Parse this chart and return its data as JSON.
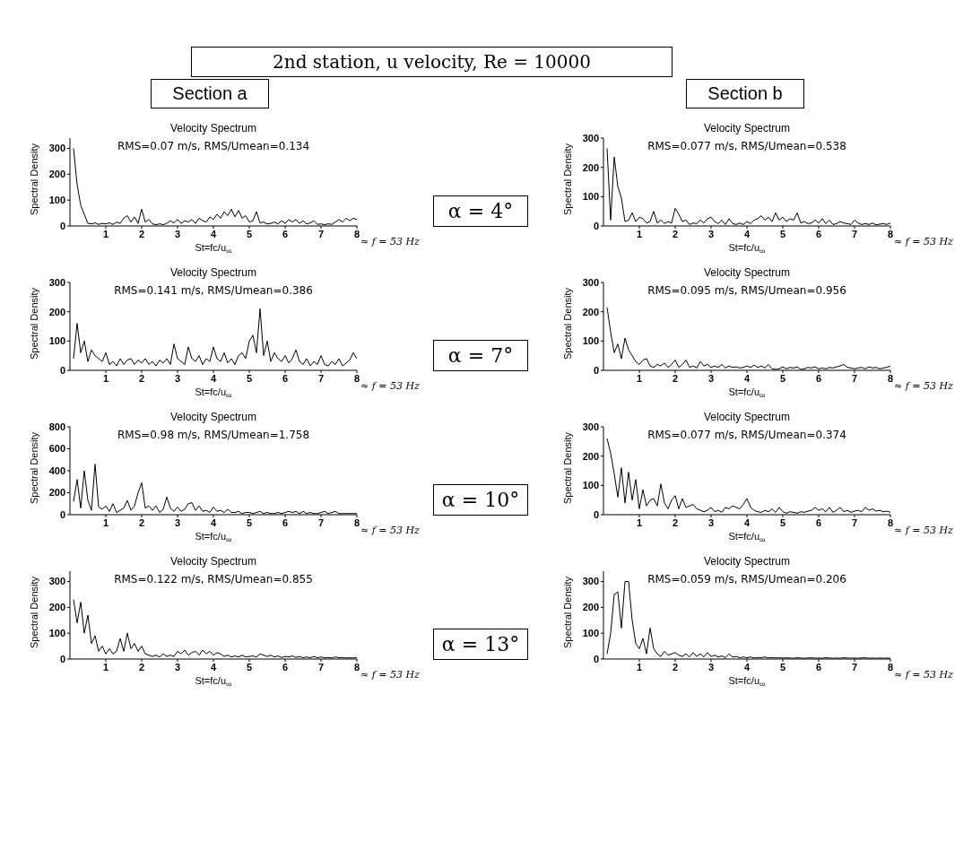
{
  "chart_data": [
    {
      "type": "other",
      "title": "2nd station, u velocity, Re = 10000",
      "annotations": [
        "Section a",
        "Section b"
      ]
    },
    {
      "type": "line",
      "title": "Velocity Spectrum",
      "xlabel": "St=fc/u$_{∞}$",
      "ylabel": "Spectral Density",
      "annotations": [
        "RMS=0.07 m/s, RMS/Umean=0.134",
        "≈ f = 53 Hz"
      ],
      "xlim": [
        0,
        8
      ],
      "xticks": [
        1,
        2,
        3,
        4,
        5,
        6,
        7,
        8
      ],
      "ylim": [
        0,
        340
      ],
      "yticks": [
        0,
        100,
        200,
        300
      ],
      "color": "#000000",
      "x": [
        0.1,
        0.2,
        0.3,
        0.4,
        0.5,
        0.6,
        0.7,
        0.8,
        0.9,
        1.0,
        1.1,
        1.2,
        1.3,
        1.4,
        1.5,
        1.6,
        1.7,
        1.8,
        1.9,
        2.0,
        2.1,
        2.2,
        2.3,
        2.4,
        2.5,
        2.6,
        2.7,
        2.8,
        2.9,
        3.0,
        3.1,
        3.2,
        3.3,
        3.4,
        3.5,
        3.6,
        3.7,
        3.8,
        3.9,
        4.0,
        4.1,
        4.2,
        4.3,
        4.4,
        4.5,
        4.6,
        4.7,
        4.8,
        4.9,
        5.0,
        5.1,
        5.2,
        5.3,
        5.4,
        5.5,
        5.6,
        5.7,
        5.8,
        5.9,
        6.0,
        6.1,
        6.2,
        6.3,
        6.4,
        6.5,
        6.6,
        6.7,
        6.8,
        6.9,
        7.0,
        7.1,
        7.2,
        7.3,
        7.4,
        7.5,
        7.6,
        7.7,
        7.8,
        7.9,
        8.0
      ],
      "values": [
        300,
        160,
        80,
        45,
        10,
        8,
        12,
        6,
        10,
        8,
        12,
        6,
        15,
        10,
        30,
        40,
        15,
        35,
        10,
        65,
        15,
        25,
        8,
        5,
        8,
        5,
        10,
        20,
        12,
        25,
        10,
        20,
        15,
        25,
        10,
        30,
        20,
        15,
        35,
        25,
        45,
        30,
        55,
        40,
        65,
        35,
        60,
        30,
        40,
        15,
        20,
        55,
        12,
        15,
        8,
        10,
        15,
        8,
        20,
        10,
        25,
        15,
        25,
        10,
        20,
        8,
        12,
        20,
        6,
        8,
        5,
        8,
        6,
        15,
        25,
        15,
        30,
        20,
        30,
        25
      ]
    },
    {
      "type": "line",
      "title": "Velocity Spectrum",
      "xlabel": "St=fc/u$_{∞}$",
      "ylabel": "Spectral Density",
      "annotations": [
        "RMS=0.077 m/s, RMS/Umean=0.538",
        "≈ f = 53 Hz",
        "α = 4°"
      ],
      "xlim": [
        0,
        8
      ],
      "xticks": [
        1,
        2,
        3,
        4,
        5,
        6,
        7,
        8
      ],
      "ylim": [
        0,
        300
      ],
      "yticks": [
        0,
        100,
        200,
        300
      ],
      "color": "#000000",
      "x": [
        0.1,
        0.2,
        0.3,
        0.4,
        0.5,
        0.6,
        0.7,
        0.8,
        0.9,
        1.0,
        1.1,
        1.2,
        1.3,
        1.4,
        1.5,
        1.6,
        1.7,
        1.8,
        1.9,
        2.0,
        2.1,
        2.2,
        2.3,
        2.4,
        2.5,
        2.6,
        2.7,
        2.8,
        2.9,
        3.0,
        3.1,
        3.2,
        3.3,
        3.4,
        3.5,
        3.6,
        3.7,
        3.8,
        3.9,
        4.0,
        4.1,
        4.2,
        4.3,
        4.4,
        4.5,
        4.6,
        4.7,
        4.8,
        4.9,
        5.0,
        5.1,
        5.2,
        5.3,
        5.4,
        5.5,
        5.6,
        5.7,
        5.8,
        5.9,
        6.0,
        6.1,
        6.2,
        6.3,
        6.4,
        6.5,
        6.6,
        6.7,
        6.8,
        6.9,
        7.0,
        7.1,
        7.2,
        7.3,
        7.4,
        7.5,
        7.6,
        7.7,
        7.8,
        7.9,
        8.0
      ],
      "values": [
        265,
        20,
        235,
        135,
        95,
        15,
        20,
        45,
        15,
        30,
        25,
        10,
        15,
        50,
        10,
        20,
        8,
        15,
        10,
        60,
        40,
        15,
        20,
        5,
        10,
        8,
        20,
        10,
        25,
        30,
        15,
        8,
        20,
        5,
        25,
        8,
        5,
        10,
        5,
        15,
        8,
        20,
        25,
        35,
        20,
        30,
        15,
        45,
        20,
        30,
        15,
        25,
        20,
        45,
        10,
        15,
        8,
        10,
        20,
        10,
        25,
        8,
        20,
        5,
        8,
        15,
        10,
        8,
        5,
        20,
        10,
        5,
        8,
        5,
        10,
        4,
        6,
        8,
        5,
        10
      ]
    },
    {
      "type": "line",
      "title": "Velocity Spectrum",
      "xlabel": "St=fc/u$_{∞}$",
      "ylabel": "Spectral Density",
      "annotations": [
        "RMS=0.141 m/s, RMS/Umean=0.386",
        "≈ f = 53 Hz"
      ],
      "xlim": [
        0,
        8
      ],
      "xticks": [
        1,
        2,
        3,
        4,
        5,
        6,
        7,
        8
      ],
      "ylim": [
        0,
        300
      ],
      "yticks": [
        0,
        100,
        200,
        300
      ],
      "color": "#000000",
      "x": [
        0.1,
        0.2,
        0.3,
        0.4,
        0.5,
        0.6,
        0.7,
        0.8,
        0.9,
        1.0,
        1.1,
        1.2,
        1.3,
        1.4,
        1.5,
        1.6,
        1.7,
        1.8,
        1.9,
        2.0,
        2.1,
        2.2,
        2.3,
        2.4,
        2.5,
        2.6,
        2.7,
        2.8,
        2.9,
        3.0,
        3.1,
        3.2,
        3.3,
        3.4,
        3.5,
        3.6,
        3.7,
        3.8,
        3.9,
        4.0,
        4.1,
        4.2,
        4.3,
        4.4,
        4.5,
        4.6,
        4.7,
        4.8,
        4.9,
        5.0,
        5.1,
        5.2,
        5.3,
        5.4,
        5.5,
        5.6,
        5.7,
        5.8,
        5.9,
        6.0,
        6.1,
        6.2,
        6.3,
        6.4,
        6.5,
        6.6,
        6.7,
        6.8,
        6.9,
        7.0,
        7.1,
        7.2,
        7.3,
        7.4,
        7.5,
        7.6,
        7.7,
        7.8,
        7.9,
        8.0
      ],
      "values": [
        40,
        160,
        60,
        100,
        30,
        70,
        50,
        40,
        30,
        60,
        20,
        30,
        15,
        40,
        20,
        35,
        40,
        20,
        35,
        25,
        40,
        20,
        30,
        15,
        35,
        25,
        40,
        20,
        90,
        40,
        30,
        20,
        80,
        40,
        30,
        50,
        20,
        40,
        30,
        80,
        40,
        30,
        60,
        25,
        40,
        20,
        50,
        60,
        40,
        100,
        120,
        60,
        210,
        50,
        100,
        30,
        60,
        40,
        30,
        50,
        25,
        40,
        70,
        30,
        20,
        40,
        15,
        30,
        20,
        50,
        20,
        15,
        30,
        20,
        40,
        15,
        25,
        35,
        60,
        40
      ]
    },
    {
      "type": "line",
      "title": "Velocity Spectrum",
      "xlabel": "St=fc/u$_{∞}$",
      "ylabel": "Spectral Density",
      "annotations": [
        "RMS=0.095 m/s, RMS/Umean=0.956",
        "≈ f = 53 Hz",
        "α = 7°"
      ],
      "xlim": [
        0,
        8
      ],
      "xticks": [
        1,
        2,
        3,
        4,
        5,
        6,
        7,
        8
      ],
      "ylim": [
        0,
        300
      ],
      "yticks": [
        0,
        100,
        200,
        300
      ],
      "color": "#000000",
      "x": [
        0.1,
        0.2,
        0.3,
        0.4,
        0.5,
        0.6,
        0.7,
        0.8,
        0.9,
        1.0,
        1.1,
        1.2,
        1.3,
        1.4,
        1.5,
        1.6,
        1.7,
        1.8,
        1.9,
        2.0,
        2.1,
        2.2,
        2.3,
        2.4,
        2.5,
        2.6,
        2.7,
        2.8,
        2.9,
        3.0,
        3.1,
        3.2,
        3.3,
        3.4,
        3.5,
        3.6,
        3.7,
        3.8,
        3.9,
        4.0,
        4.1,
        4.2,
        4.3,
        4.4,
        4.5,
        4.6,
        4.7,
        4.8,
        4.9,
        5.0,
        5.1,
        5.2,
        5.3,
        5.4,
        5.5,
        5.6,
        5.7,
        5.8,
        5.9,
        6.0,
        6.1,
        6.2,
        6.3,
        6.4,
        6.5,
        6.6,
        6.7,
        6.8,
        6.9,
        7.0,
        7.1,
        7.2,
        7.3,
        7.4,
        7.5,
        7.6,
        7.7,
        7.8,
        7.9,
        8.0
      ],
      "values": [
        215,
        130,
        60,
        90,
        40,
        110,
        70,
        50,
        30,
        20,
        35,
        40,
        15,
        10,
        20,
        15,
        25,
        10,
        20,
        35,
        10,
        20,
        35,
        10,
        15,
        8,
        30,
        15,
        20,
        10,
        15,
        10,
        20,
        8,
        15,
        10,
        12,
        8,
        10,
        15,
        10,
        18,
        10,
        15,
        8,
        20,
        5,
        3,
        5,
        12,
        5,
        10,
        8,
        12,
        3,
        5,
        10,
        8,
        12,
        5,
        8,
        5,
        10,
        8,
        12,
        15,
        20,
        10,
        8,
        5,
        8,
        10,
        5,
        12,
        8,
        10,
        5,
        8,
        10,
        15
      ]
    },
    {
      "type": "line",
      "title": "Velocity Spectrum",
      "xlabel": "St=fc/u$_{∞}$",
      "ylabel": "Spectral Density",
      "annotations": [
        "RMS=0.98 m/s, RMS/Umean=1.758",
        "≈ f = 53 Hz"
      ],
      "xlim": [
        0,
        8
      ],
      "xticks": [
        1,
        2,
        3,
        4,
        5,
        6,
        7,
        8
      ],
      "ylim": [
        0,
        800
      ],
      "yticks": [
        0,
        200,
        400,
        600,
        800
      ],
      "color": "#000000",
      "x": [
        0.1,
        0.2,
        0.3,
        0.4,
        0.5,
        0.6,
        0.7,
        0.8,
        0.9,
        1.0,
        1.1,
        1.2,
        1.3,
        1.4,
        1.5,
        1.6,
        1.7,
        1.8,
        1.9,
        2.0,
        2.1,
        2.2,
        2.3,
        2.4,
        2.5,
        2.6,
        2.7,
        2.8,
        2.9,
        3.0,
        3.1,
        3.2,
        3.3,
        3.4,
        3.5,
        3.6,
        3.7,
        3.8,
        3.9,
        4.0,
        4.1,
        4.2,
        4.3,
        4.4,
        4.5,
        4.6,
        4.7,
        4.8,
        4.9,
        5.0,
        5.1,
        5.2,
        5.3,
        5.4,
        5.5,
        5.6,
        5.7,
        5.8,
        5.9,
        6.0,
        6.1,
        6.2,
        6.3,
        6.4,
        6.5,
        6.6,
        6.7,
        6.8,
        6.9,
        7.0,
        7.1,
        7.2,
        7.3,
        7.4,
        7.5,
        7.6,
        7.7,
        7.8,
        7.9,
        8.0
      ],
      "values": [
        120,
        320,
        60,
        400,
        130,
        40,
        460,
        70,
        50,
        80,
        30,
        100,
        20,
        40,
        60,
        130,
        40,
        80,
        200,
        290,
        60,
        80,
        40,
        80,
        20,
        50,
        160,
        60,
        30,
        70,
        30,
        50,
        100,
        110,
        40,
        80,
        30,
        40,
        20,
        70,
        30,
        40,
        20,
        50,
        20,
        20,
        30,
        10,
        20,
        20,
        10,
        20,
        30,
        10,
        20,
        10,
        10,
        20,
        10,
        20,
        30,
        20,
        30,
        10,
        30,
        10,
        20,
        10,
        10,
        20,
        30,
        10,
        20,
        30,
        10,
        10,
        10,
        10,
        10,
        10
      ]
    },
    {
      "type": "line",
      "title": "Velocity Spectrum",
      "xlabel": "St=fc/u$_{∞}$",
      "ylabel": "Spectral Density",
      "annotations": [
        "RMS=0.077 m/s, RMS/Umean=0.374",
        "≈ f = 53 Hz",
        "α = 10°"
      ],
      "xlim": [
        0,
        8
      ],
      "xticks": [
        1,
        2,
        3,
        4,
        5,
        6,
        7,
        8
      ],
      "ylim": [
        0,
        300
      ],
      "yticks": [
        0,
        100,
        200,
        300
      ],
      "color": "#000000",
      "x": [
        0.1,
        0.2,
        0.3,
        0.4,
        0.5,
        0.6,
        0.7,
        0.8,
        0.9,
        1.0,
        1.1,
        1.2,
        1.3,
        1.4,
        1.5,
        1.6,
        1.7,
        1.8,
        1.9,
        2.0,
        2.1,
        2.2,
        2.3,
        2.4,
        2.5,
        2.6,
        2.7,
        2.8,
        2.9,
        3.0,
        3.1,
        3.2,
        3.3,
        3.4,
        3.5,
        3.6,
        3.7,
        3.8,
        3.9,
        4.0,
        4.1,
        4.2,
        4.3,
        4.4,
        4.5,
        4.6,
        4.7,
        4.8,
        4.9,
        5.0,
        5.1,
        5.2,
        5.3,
        5.4,
        5.5,
        5.6,
        5.7,
        5.8,
        5.9,
        6.0,
        6.1,
        6.2,
        6.3,
        6.4,
        6.5,
        6.6,
        6.7,
        6.8,
        6.9,
        7.0,
        7.1,
        7.2,
        7.3,
        7.4,
        7.5,
        7.6,
        7.7,
        7.8,
        7.9,
        8.0
      ],
      "values": [
        260,
        210,
        140,
        60,
        160,
        40,
        145,
        50,
        120,
        20,
        85,
        30,
        50,
        55,
        30,
        105,
        40,
        20,
        50,
        65,
        20,
        55,
        25,
        30,
        35,
        20,
        15,
        10,
        15,
        25,
        10,
        15,
        8,
        25,
        20,
        30,
        25,
        20,
        35,
        55,
        25,
        15,
        10,
        8,
        15,
        10,
        20,
        8,
        25,
        10,
        5,
        10,
        8,
        5,
        10,
        8,
        12,
        15,
        25,
        15,
        20,
        10,
        25,
        8,
        15,
        25,
        10,
        15,
        8,
        12,
        15,
        10,
        25,
        15,
        20,
        12,
        15,
        10,
        12,
        8
      ]
    },
    {
      "type": "line",
      "title": "Velocity Spectrum",
      "xlabel": "St=fc/u$_{∞}$",
      "ylabel": "Spectral Density",
      "annotations": [
        "RMS=0.122 m/s, RMS/Umean=0.855",
        "≈ f = 53 Hz"
      ],
      "xlim": [
        0,
        8
      ],
      "xticks": [
        1,
        2,
        3,
        4,
        5,
        6,
        7,
        8
      ],
      "ylim": [
        0,
        340
      ],
      "yticks": [
        0,
        100,
        200,
        300
      ],
      "color": "#000000",
      "x": [
        0.1,
        0.2,
        0.3,
        0.4,
        0.5,
        0.6,
        0.7,
        0.8,
        0.9,
        1.0,
        1.1,
        1.2,
        1.3,
        1.4,
        1.5,
        1.6,
        1.7,
        1.8,
        1.9,
        2.0,
        2.1,
        2.2,
        2.3,
        2.4,
        2.5,
        2.6,
        2.7,
        2.8,
        2.9,
        3.0,
        3.1,
        3.2,
        3.3,
        3.4,
        3.5,
        3.6,
        3.7,
        3.8,
        3.9,
        4.0,
        4.1,
        4.2,
        4.3,
        4.4,
        4.5,
        4.6,
        4.7,
        4.8,
        4.9,
        5.0,
        5.1,
        5.2,
        5.3,
        5.4,
        5.5,
        5.6,
        5.7,
        5.8,
        5.9,
        6.0,
        6.1,
        6.2,
        6.3,
        6.4,
        6.5,
        6.6,
        6.7,
        6.8,
        6.9,
        7.0,
        7.1,
        7.2,
        7.3,
        7.4,
        7.5,
        7.6,
        7.7,
        7.8,
        7.9,
        8.0
      ],
      "values": [
        230,
        140,
        220,
        100,
        170,
        60,
        90,
        30,
        50,
        20,
        40,
        20,
        30,
        80,
        30,
        100,
        40,
        60,
        30,
        50,
        20,
        15,
        10,
        15,
        8,
        20,
        10,
        15,
        10,
        30,
        20,
        35,
        15,
        25,
        30,
        15,
        35,
        20,
        30,
        15,
        25,
        20,
        10,
        15,
        8,
        12,
        8,
        15,
        8,
        10,
        12,
        8,
        20,
        15,
        10,
        15,
        8,
        12,
        6,
        10,
        8,
        12,
        6,
        10,
        5,
        8,
        5,
        10,
        5,
        8,
        5,
        6,
        4,
        8,
        5,
        6,
        4,
        5,
        4,
        6
      ]
    },
    {
      "type": "line",
      "title": "Velocity Spectrum",
      "xlabel": "St=fc/u$_{∞}$",
      "ylabel": "Spectral Density",
      "annotations": [
        "RMS=0.059 m/s, RMS/Umean=0.206",
        "≈ f = 53 Hz",
        "α = 13°"
      ],
      "xlim": [
        0,
        8
      ],
      "xticks": [
        1,
        2,
        3,
        4,
        5,
        6,
        7,
        8
      ],
      "ylim": [
        0,
        340
      ],
      "yticks": [
        0,
        100,
        200,
        300
      ],
      "color": "#000000",
      "x": [
        0.1,
        0.2,
        0.3,
        0.4,
        0.5,
        0.6,
        0.7,
        0.8,
        0.9,
        1.0,
        1.1,
        1.2,
        1.3,
        1.4,
        1.5,
        1.6,
        1.7,
        1.8,
        1.9,
        2.0,
        2.1,
        2.2,
        2.3,
        2.4,
        2.5,
        2.6,
        2.7,
        2.8,
        2.9,
        3.0,
        3.1,
        3.2,
        3.3,
        3.4,
        3.5,
        3.6,
        3.7,
        3.8,
        3.9,
        4.0,
        4.1,
        4.2,
        4.3,
        4.4,
        4.5,
        4.6,
        4.7,
        4.8,
        4.9,
        5.0,
        5.1,
        5.2,
        5.3,
        5.4,
        5.5,
        5.6,
        5.7,
        5.8,
        5.9,
        6.0,
        6.1,
        6.2,
        6.3,
        6.4,
        6.5,
        6.6,
        6.7,
        6.8,
        6.9,
        7.0,
        7.1,
        7.2,
        7.3,
        7.4,
        7.5,
        7.6,
        7.7,
        7.8,
        7.9,
        8.0
      ],
      "values": [
        20,
        100,
        250,
        260,
        120,
        300,
        300,
        150,
        60,
        40,
        80,
        20,
        120,
        40,
        20,
        10,
        30,
        15,
        20,
        25,
        15,
        10,
        20,
        8,
        25,
        10,
        20,
        8,
        25,
        10,
        15,
        8,
        12,
        5,
        20,
        8,
        10,
        5,
        8,
        5,
        8,
        4,
        6,
        5,
        8,
        4,
        6,
        4,
        5,
        4,
        5,
        4,
        3,
        5,
        4,
        3,
        4,
        5,
        3,
        4,
        3,
        5,
        4,
        3,
        4,
        3,
        5,
        4,
        3,
        4,
        3,
        4,
        5,
        3,
        4,
        3,
        4,
        3,
        4,
        3
      ]
    }
  ]
}
